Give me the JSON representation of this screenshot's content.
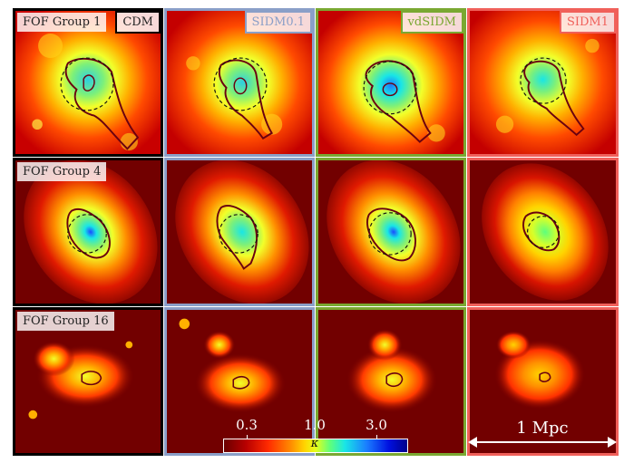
{
  "rows": [
    {
      "group_label": "FOF Group 1"
    },
    {
      "group_label": "FOF Group 4"
    },
    {
      "group_label": "FOF Group 16"
    }
  ],
  "models": [
    {
      "name": "CDM",
      "color": "#000000"
    },
    {
      "name": "SIDM0.1",
      "color": "#8a9fc8"
    },
    {
      "name": "vdSIDM",
      "color": "#7aa832"
    },
    {
      "name": "SIDM1",
      "color": "#f0605a"
    }
  ],
  "colorbar": {
    "ticks": [
      "0.3",
      "1.0",
      "3.0"
    ],
    "label": "κ"
  },
  "scalebar": {
    "label": "1 Mpc"
  }
}
